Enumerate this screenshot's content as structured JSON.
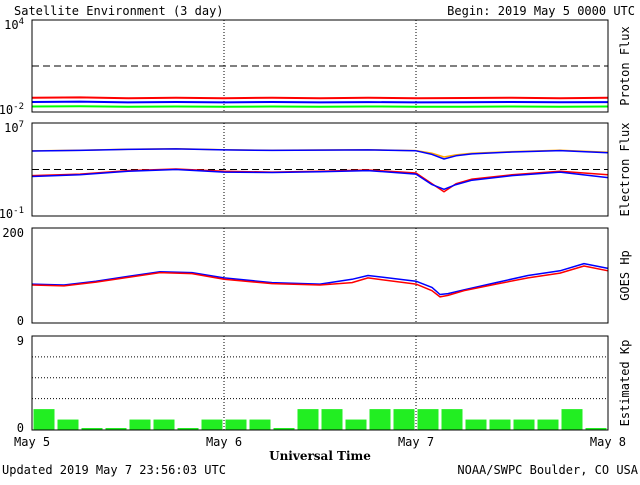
{
  "header": {
    "title": "Satellite Environment (3 day)",
    "begin": "Begin:  2019 May 5 0000 UTC"
  },
  "footer": {
    "updated": "Updated 2019 May  7 23:56:03 UTC",
    "credit": "NOAA/SWPC Boulder, CO USA"
  },
  "chart_data": [
    {
      "type": "line",
      "ylabel": "Proton Flux",
      "scale": "log",
      "ylim": [
        0.01,
        10000
      ],
      "ticks": [
        {
          "base": "10",
          "exp": "4",
          "value": 10000
        },
        {
          "base": "10",
          "exp": "-2",
          "value": 0.01
        }
      ],
      "threshold": 10,
      "x": [
        0,
        6,
        12,
        18,
        24,
        30,
        36,
        42,
        48,
        54,
        60,
        66,
        72
      ],
      "series": [
        {
          "color": "#ff0000",
          "values": [
            0.085,
            0.09,
            0.08,
            0.085,
            0.08,
            0.085,
            0.08,
            0.085,
            0.08,
            0.082,
            0.085,
            0.08,
            0.085
          ]
        },
        {
          "color": "#0000ff",
          "values": [
            0.045,
            0.048,
            0.042,
            0.045,
            0.042,
            0.045,
            0.042,
            0.044,
            0.042,
            0.043,
            0.045,
            0.043,
            0.044
          ]
        },
        {
          "color": "#00ff00",
          "values": [
            0.023,
            0.024,
            0.022,
            0.023,
            0.022,
            0.023,
            0.022,
            0.023,
            0.022,
            0.022,
            0.023,
            0.022,
            0.023
          ]
        }
      ]
    },
    {
      "type": "line",
      "ylabel": "Electron Flux",
      "scale": "log",
      "ylim": [
        0.1,
        10000000
      ],
      "ticks": [
        {
          "base": "10",
          "exp": "7",
          "value": 10000000
        },
        {
          "base": "10",
          "exp": "-1",
          "value": 0.1
        }
      ],
      "threshold": 1000,
      "x": [
        0,
        6,
        12,
        18,
        24,
        30,
        36,
        42,
        48,
        50,
        51.5,
        53,
        55,
        60,
        66,
        72
      ],
      "series": [
        {
          "color": "#ffa500",
          "values": [
            40000,
            45000,
            55000,
            60000,
            50000,
            45000,
            48000,
            50000,
            42000,
            25000,
            12000,
            18000,
            25000,
            35000,
            45000,
            30000
          ]
        },
        {
          "color": "#0000ff",
          "values": [
            39000,
            44000,
            54000,
            59000,
            49000,
            44000,
            47000,
            49000,
            41000,
            20000,
            8000,
            15000,
            22000,
            32000,
            42000,
            28000
          ]
        },
        {
          "color": "#ff0000",
          "values": [
            300,
            400,
            800,
            1100,
            700,
            600,
            700,
            900,
            500,
            60,
            12,
            60,
            150,
            350,
            700,
            350
          ]
        },
        {
          "color": "#0000ff",
          "values": [
            250,
            350,
            700,
            1000,
            600,
            550,
            650,
            800,
            400,
            50,
            20,
            50,
            120,
            300,
            600,
            200
          ]
        }
      ]
    },
    {
      "type": "line",
      "ylabel": "GOES Hp",
      "scale": "linear",
      "ylim": [
        0,
        200
      ],
      "ticks": [
        {
          "label": "200",
          "value": 200
        },
        {
          "label": "0",
          "value": 0
        }
      ],
      "x": [
        0,
        4,
        8,
        12,
        16,
        20,
        24,
        30,
        36,
        40,
        42,
        48,
        50,
        51,
        52,
        54,
        58,
        62,
        66,
        69,
        72
      ],
      "series": [
        {
          "color": "#0000ff",
          "values": [
            82,
            80,
            88,
            98,
            108,
            106,
            95,
            85,
            82,
            92,
            100,
            88,
            75,
            60,
            62,
            70,
            85,
            100,
            110,
            125,
            115
          ]
        },
        {
          "color": "#ff0000",
          "values": [
            80,
            78,
            86,
            96,
            106,
            104,
            92,
            83,
            80,
            85,
            95,
            82,
            68,
            55,
            58,
            68,
            82,
            95,
            105,
            120,
            110
          ]
        }
      ]
    },
    {
      "type": "bar",
      "ylabel": "Estimated Kp",
      "scale": "linear",
      "ylim": [
        0,
        9
      ],
      "ticks": [
        {
          "label": "9",
          "value": 9
        },
        {
          "label": "0",
          "value": 0
        }
      ],
      "grid": [
        3,
        5,
        7
      ],
      "bar_hours": 3,
      "values": [
        2,
        1,
        0,
        0,
        1,
        1,
        0,
        1,
        1,
        1,
        0,
        2,
        2,
        1,
        2,
        2,
        2,
        2,
        1,
        1,
        1,
        1,
        2,
        0
      ],
      "color": "#22ee22"
    }
  ],
  "x_axis": {
    "label": "Universal Time",
    "range": [
      0,
      72
    ],
    "ticks": [
      {
        "label": "May 5",
        "value": 0
      },
      {
        "label": "May 6",
        "value": 24
      },
      {
        "label": "May 7",
        "value": 48
      },
      {
        "label": "May 8",
        "value": 72
      }
    ]
  }
}
